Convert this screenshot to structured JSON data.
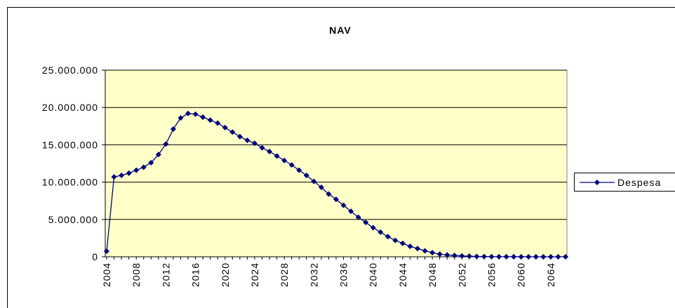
{
  "chart_data": {
    "type": "line",
    "title": "NAV",
    "x": [
      2004,
      2005,
      2006,
      2007,
      2008,
      2009,
      2010,
      2011,
      2012,
      2013,
      2014,
      2015,
      2016,
      2017,
      2018,
      2019,
      2020,
      2021,
      2022,
      2023,
      2024,
      2025,
      2026,
      2027,
      2028,
      2029,
      2030,
      2031,
      2032,
      2033,
      2034,
      2035,
      2036,
      2037,
      2038,
      2039,
      2040,
      2041,
      2042,
      2043,
      2044,
      2045,
      2046,
      2047,
      2048,
      2049,
      2050,
      2051,
      2052,
      2053,
      2054,
      2055,
      2056,
      2057,
      2058,
      2059,
      2060,
      2061,
      2062,
      2063,
      2064,
      2065,
      2066
    ],
    "series": [
      {
        "name": "Despesa",
        "color": "#000080",
        "values": [
          750000,
          10700000,
          10900000,
          11200000,
          11600000,
          12000000,
          12600000,
          13700000,
          15100000,
          17100000,
          18600000,
          19200000,
          19100000,
          18700000,
          18300000,
          17900000,
          17300000,
          16700000,
          16100000,
          15600000,
          15200000,
          14600000,
          14100000,
          13500000,
          12900000,
          12300000,
          11600000,
          10900000,
          10100000,
          9300000,
          8400000,
          7700000,
          6900000,
          6100000,
          5300000,
          4600000,
          3900000,
          3300000,
          2700000,
          2200000,
          1800000,
          1400000,
          1100000,
          800000,
          550000,
          350000,
          250000,
          180000,
          120000,
          80000,
          50000,
          30000,
          20000,
          15000,
          10000,
          8000,
          5000,
          4000,
          3000,
          2000,
          1000,
          500,
          0
        ]
      }
    ],
    "xlim": [
      2004,
      2066
    ],
    "xticks": [
      2004,
      2008,
      2012,
      2016,
      2020,
      2024,
      2028,
      2032,
      2036,
      2040,
      2044,
      2048,
      2052,
      2056,
      2060,
      2064
    ],
    "ylim": [
      0,
      25000000
    ],
    "yticks": [
      {
        "value": 0,
        "label": "0"
      },
      {
        "value": 5000000,
        "label": "5.000.000"
      },
      {
        "value": 10000000,
        "label": "10.000.000"
      },
      {
        "value": 15000000,
        "label": "15.000.000"
      },
      {
        "value": 20000000,
        "label": "20.000.000"
      },
      {
        "value": 25000000,
        "label": "25.000.000"
      }
    ],
    "grid": true,
    "legend": "right"
  }
}
